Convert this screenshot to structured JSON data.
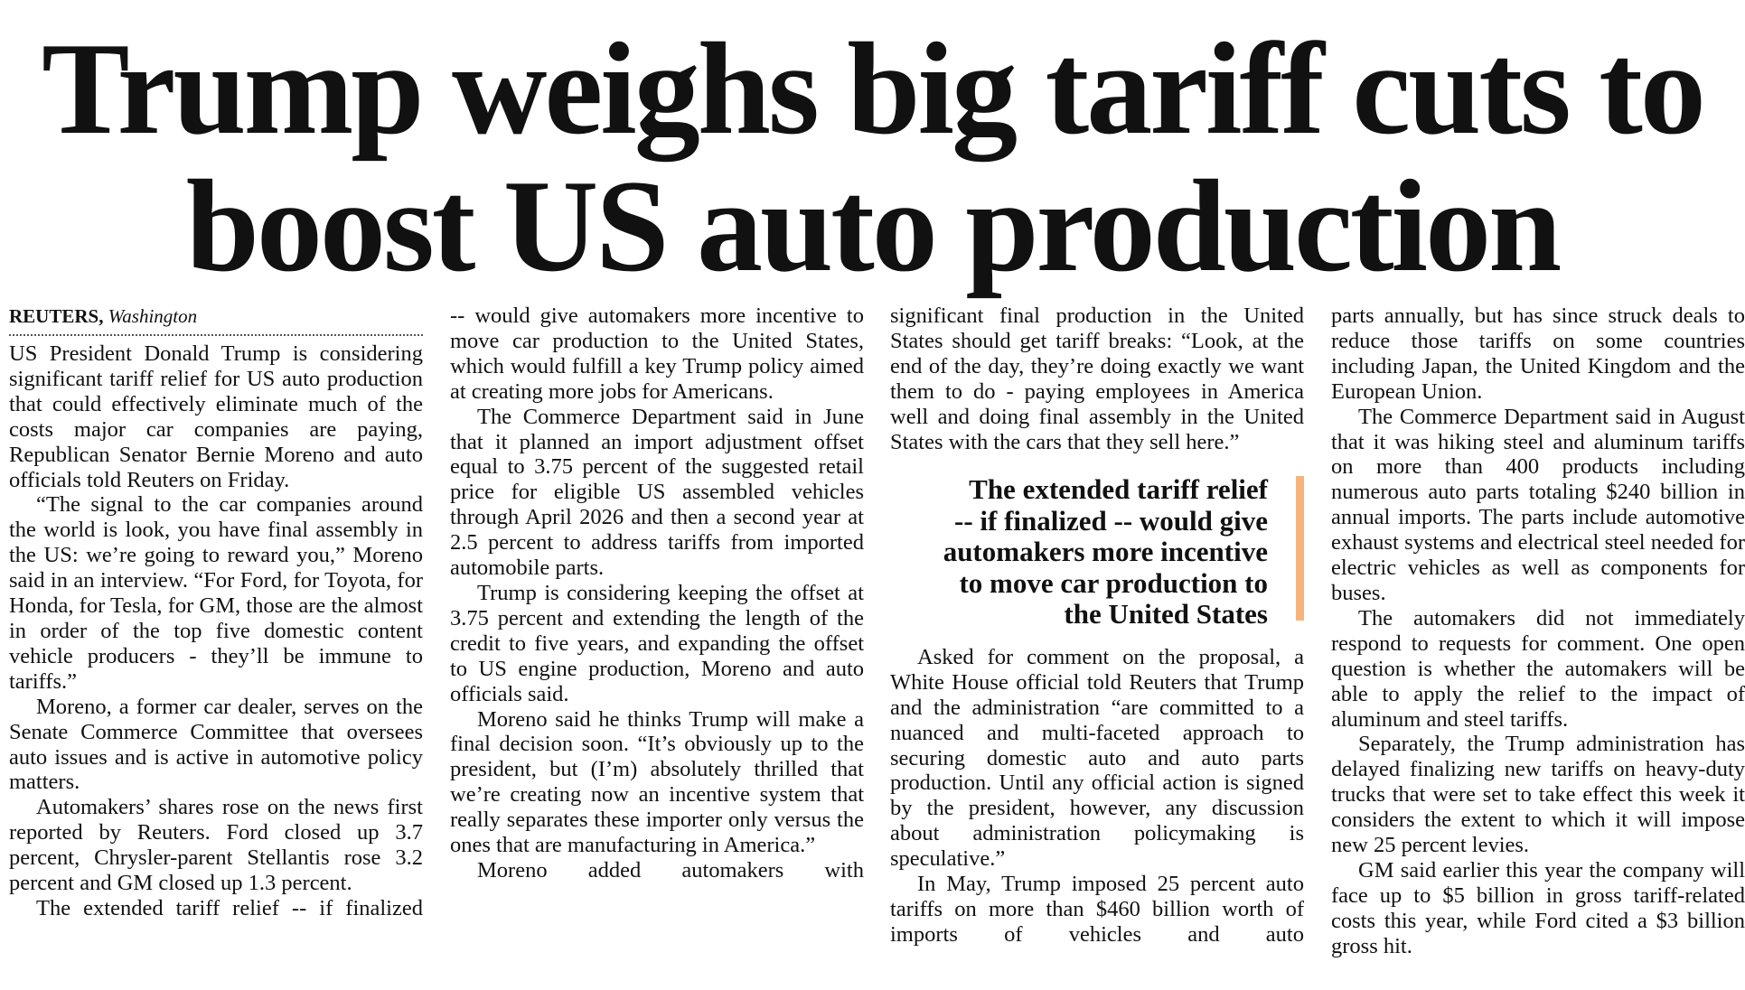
{
  "headline": {
    "lines": [
      "Trump weighs big tariff cuts to",
      "boost US auto production"
    ]
  },
  "byline": {
    "agency": "REUTERS,",
    "location": "Washington"
  },
  "columns": [
    {
      "paragraphs": [
        "US President Donald Trump is considering significant tariff relief for US auto production that could effectively eliminate much of the costs major car companies are paying, Republican Senator Bernie Moreno and auto officials told Reuters on Friday.",
        "“The signal to the car companies around the world is look, you have final assembly in the US: we’re going to reward you,” Moreno said in an interview. “For Ford, for Toyota, for Honda, for Tesla, for GM, those are the almost in order of the top five domestic content vehicle producers - they’ll be immune to tariffs.”",
        "Moreno, a former car dealer, serves on the Senate Commerce Committee that oversees auto issues and is active in automotive policy matters.",
        "Automakers’ shares rose on the news first reported by Reuters. Ford closed up 3.7 percent, Chrysler-parent Stellantis rose 3.2 percent and GM closed up 1.3 percent.",
        "The extended tariff relief -- if finalized"
      ]
    },
    {
      "paragraphs": [
        "-- would give automakers more incentive to move car production to the United States, which would fulfill a key Trump policy aimed at creating more jobs for Americans.",
        "The Commerce Department said in June that it planned an import adjustment offset equal to 3.75 percent of the suggested retail price for eligible US assembled vehicles through April 2026 and then a second year at 2.5 percent to address tariffs from imported automobile parts.",
        "Trump is considering keeping the offset at 3.75 percent and extending the length of the credit to five years, and expanding the offset to US engine production, Moreno and auto officials said.",
        "Moreno said he thinks Trump will make a final decision soon. “It’s obviously up to the president, but (I’m) absolutely thrilled that we’re creating now an incentive system that really separates these importer only versus the ones that are manufacturing in America.”",
        "Moreno added automakers with"
      ]
    },
    {
      "paragraphs": [
        "significant final production in the United States should get tariff breaks: “Look, at the end of the day, they’re doing exactly we want them to do - paying employees in America well and doing final assembly in the United States with the cars that they sell here.”",
        "Asked for comment on the proposal, a White House official told Reuters that Trump and the administration “are committed to a nuanced and multi-faceted approach to securing domestic auto and auto parts production. Until any official action is signed by the president, however, any discussion about administration policymaking is speculative.”",
        "In May, Trump imposed 25 percent auto tariffs on more than $460 billion worth of imports of vehicles and auto"
      ]
    },
    {
      "paragraphs": [
        "parts annually, but has since struck deals to reduce those tariffs on some countries including Japan, the United Kingdom and the European Union.",
        "The Commerce Department said in August that it was hiking steel and aluminum tariffs on more than 400 products including numerous auto parts totaling $240 billion in annual imports. The parts include automotive exhaust systems and electrical steel needed for electric vehicles as well as components for buses.",
        "The automakers did not immediately respond to requests for comment. One open question is whether the automakers will be able to apply the relief to the impact of aluminum and steel tariffs.",
        "Separately, the Trump administration has delayed finalizing new tariffs on heavy-duty trucks that were set to take effect this week it considers the extent to which it will impose new 25 percent levies.",
        "GM said earlier this year the company will face up to $5 billion in gross tariff-related costs this year, while Ford cited a $3 billion gross hit."
      ]
    }
  ],
  "pull_quote": {
    "lines": [
      "The extended tariff relief",
      "-- if finalized -- would give",
      "automakers more incentive",
      "to move car production to",
      "the United States"
    ]
  }
}
